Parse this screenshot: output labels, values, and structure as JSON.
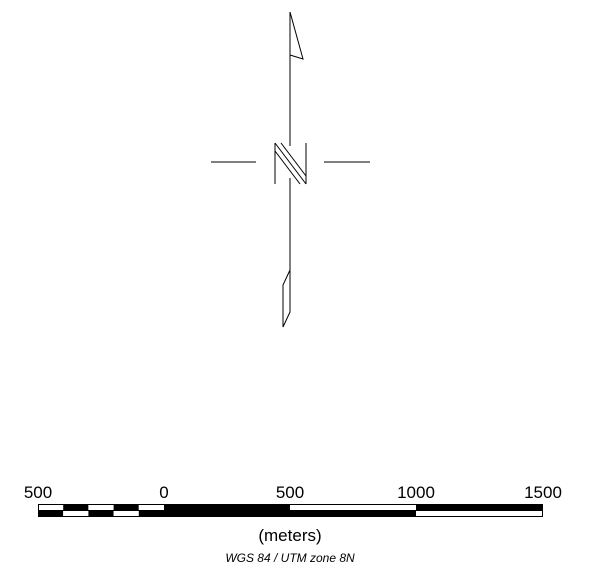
{
  "north_arrow": {
    "icon": "north-arrow-icon",
    "direction": "N"
  },
  "scale_bar": {
    "units_label": "(meters)",
    "tick_labels": [
      "500",
      "0",
      "500",
      "1000",
      "1500"
    ],
    "fill_color": "#000000",
    "empty_color": "#ffffff"
  },
  "crs_label": "WGS 84 / UTM zone 8N"
}
